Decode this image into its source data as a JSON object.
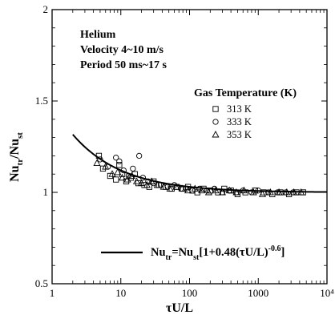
{
  "chart_data": {
    "type": "scatter",
    "x_scale": "log",
    "xlim": [
      1,
      10000
    ],
    "ylim": [
      0.5,
      2
    ],
    "x_ticks": [
      "1",
      "10",
      "100",
      "1000",
      "10⁴"
    ],
    "y_ticks": [
      "0.5",
      "1",
      "1.5",
      "2"
    ],
    "xlabel": {
      "main": "τU/L"
    },
    "ylabel": {
      "p1": "Nu",
      "s1": "tr",
      "p2": "/Nu",
      "s2": "st"
    },
    "annotations": [
      "Helium",
      "Velocity 4~10 m/s",
      "Period 50 ms~17 s"
    ],
    "legend_title": "Gas Temperature (K)",
    "series": [
      {
        "name": "313 K",
        "marker": "square",
        "x": [
          4.8,
          5.5,
          7,
          8.5,
          9.5,
          10.5,
          12,
          14,
          16,
          18,
          22,
          26,
          30,
          36,
          45,
          55,
          65,
          80,
          95,
          110,
          130,
          160,
          200,
          260,
          320,
          400,
          500,
          650,
          900,
          1200,
          1600,
          2100,
          2800,
          3600,
          4500
        ],
        "y": [
          1.2,
          1.13,
          1.09,
          1.07,
          1.15,
          1.1,
          1.06,
          1.08,
          1.1,
          1.05,
          1.04,
          1.03,
          1.06,
          1.04,
          1.03,
          1.02,
          1.03,
          1.02,
          1.03,
          1.01,
          1.0,
          1.02,
          1.01,
          1.0,
          1.02,
          1.01,
          0.99,
          1.0,
          1.01,
          1.0,
          0.99,
          1.0,
          0.99,
          1.0,
          1.0
        ]
      },
      {
        "name": "333 K",
        "marker": "circle",
        "x": [
          5,
          6.5,
          8.5,
          9.5,
          11,
          13,
          15,
          18.5,
          21,
          25,
          30,
          38,
          48,
          60,
          75,
          90,
          110,
          140,
          180,
          230,
          300,
          380,
          480,
          600,
          800,
          1000,
          1400,
          1900,
          2500,
          3200
        ],
        "y": [
          1.18,
          1.14,
          1.19,
          1.17,
          1.12,
          1.09,
          1.13,
          1.2,
          1.08,
          1.06,
          1.05,
          1.04,
          1.03,
          1.04,
          1.02,
          1.02,
          1.01,
          1.02,
          1.01,
          1.02,
          1.0,
          1.01,
          1.0,
          1.01,
          1.0,
          1.01,
          1.0,
          1.0,
          1.0,
          1.0
        ]
      },
      {
        "name": "353 K",
        "marker": "triangle",
        "x": [
          4.5,
          6,
          7.5,
          9,
          10.5,
          12.5,
          14.5,
          17,
          20,
          24,
          28,
          34,
          42,
          52,
          64,
          78,
          95,
          120,
          150,
          190,
          240,
          300,
          380,
          480,
          620,
          850,
          1150,
          1500,
          2000,
          2600,
          3300,
          4200
        ],
        "y": [
          1.16,
          1.14,
          1.1,
          1.11,
          1.08,
          1.07,
          1.09,
          1.06,
          1.05,
          1.04,
          1.06,
          1.04,
          1.03,
          1.02,
          1.03,
          1.02,
          1.01,
          1.02,
          1.01,
          1.0,
          1.01,
          1.0,
          1.01,
          1.0,
          1.01,
          1.0,
          0.99,
          1.0,
          1.0,
          1.0,
          1.0,
          1.0
        ]
      }
    ],
    "fit_curve": {
      "a": 0.48,
      "b": -0.6,
      "x_range": [
        2,
        10000
      ],
      "label": {
        "t1": "Nu",
        "s1": "tr",
        "t2": "=Nu",
        "s2": "st",
        "t3": "[1+0.48(τU/L)",
        "sup": "-0.6",
        "t4": "]"
      }
    },
    "grid": false
  }
}
